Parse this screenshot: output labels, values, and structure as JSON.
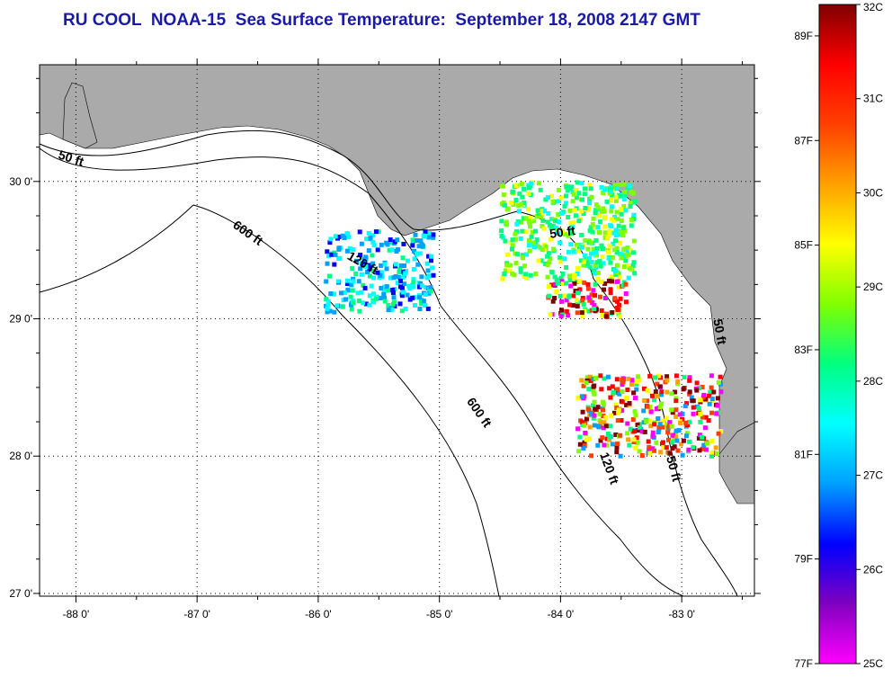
{
  "title": "RU COOL  NOAA-15  Sea Surface Temperature:  September 18, 2008 2147 GMT",
  "map": {
    "lon_range": [
      -88.3,
      -82.4
    ],
    "lat_range": [
      26.98,
      30.85
    ],
    "lon_ticks": [
      -88,
      -87,
      -86,
      -85,
      -84,
      -83
    ],
    "lon_tick_labels": [
      "-88 0'",
      "-87 0'",
      "-86 0'",
      "-85 0'",
      "-84 0'",
      "-83 0'"
    ],
    "lat_ticks": [
      27,
      28,
      29,
      30
    ],
    "lat_tick_labels": [
      "27 0'",
      "28 0'",
      "29 0'",
      "30 0'"
    ],
    "grid": true,
    "land_color": "#aaaaaa",
    "water_color": "#ffffff",
    "contour_labels": [
      {
        "text": "50 ft",
        "lon": -88.05,
        "lat": 30.14,
        "angle": 18
      },
      {
        "text": "600 ft",
        "lon": -86.6,
        "lat": 29.6,
        "angle": 35
      },
      {
        "text": "120 ft",
        "lon": -85.65,
        "lat": 29.38,
        "angle": 30
      },
      {
        "text": "50 ft",
        "lon": -83.98,
        "lat": 29.6,
        "angle": -8
      },
      {
        "text": "600 ft",
        "lon": -84.7,
        "lat": 28.3,
        "angle": 55
      },
      {
        "text": "120 ft",
        "lon": -83.63,
        "lat": 27.9,
        "angle": 70
      },
      {
        "text": "50 ft",
        "lon": -83.1,
        "lat": 27.9,
        "angle": 75
      },
      {
        "text": "50 ft",
        "lon": -82.72,
        "lat": 28.9,
        "angle": 80
      }
    ]
  },
  "colorbar": {
    "celsius_labels": [
      "32C",
      "31C",
      "30C",
      "29C",
      "28C",
      "27C",
      "26C",
      "25C"
    ],
    "celsius_values": [
      32,
      31,
      30,
      29,
      28,
      27,
      26,
      25
    ],
    "fahrenheit_labels": [
      "89F",
      "87F",
      "85F",
      "83F",
      "81F",
      "79F",
      "77F"
    ],
    "fahrenheit_values": [
      89,
      87,
      85,
      83,
      81,
      79,
      77
    ],
    "range_c": [
      25,
      32
    ],
    "palette": [
      "#ff00ff",
      "#8000c0",
      "#0000ff",
      "#00a0ff",
      "#00ffff",
      "#00ff80",
      "#80ff00",
      "#ffff00",
      "#ffa000",
      "#ff4000",
      "#ff0000",
      "#800000"
    ]
  }
}
